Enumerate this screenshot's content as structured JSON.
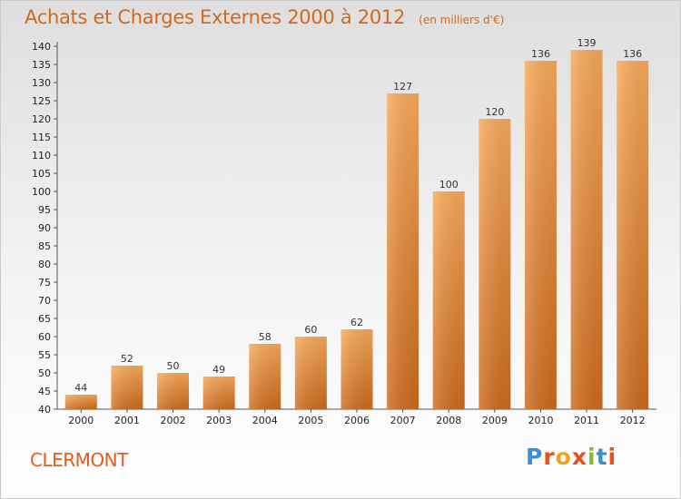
{
  "header": {
    "title": "Achats et Charges Externes 2000 à 2012",
    "subtitle": "(en milliers d'€)"
  },
  "footer": {
    "city": "CLERMONT",
    "brand": "Proxiti"
  },
  "colors": {
    "accent": "#d2691e",
    "bar_top": "#f7a95a",
    "bar_bottom": "#cc6a1c",
    "city": "#e85a1a"
  },
  "chart_data": {
    "type": "bar",
    "title": "Achats et Charges Externes 2000 à 2012",
    "subtitle": "(en milliers d'€)",
    "xlabel": "",
    "ylabel": "",
    "categories": [
      "2000",
      "2001",
      "2002",
      "2003",
      "2004",
      "2005",
      "2006",
      "2007",
      "2008",
      "2009",
      "2010",
      "2011",
      "2012"
    ],
    "values": [
      44,
      52,
      50,
      49,
      58,
      60,
      62,
      127,
      100,
      120,
      136,
      139,
      136
    ],
    "ylim": [
      40,
      140
    ],
    "ytick_step": 5,
    "grid": false,
    "data_labels": true
  }
}
